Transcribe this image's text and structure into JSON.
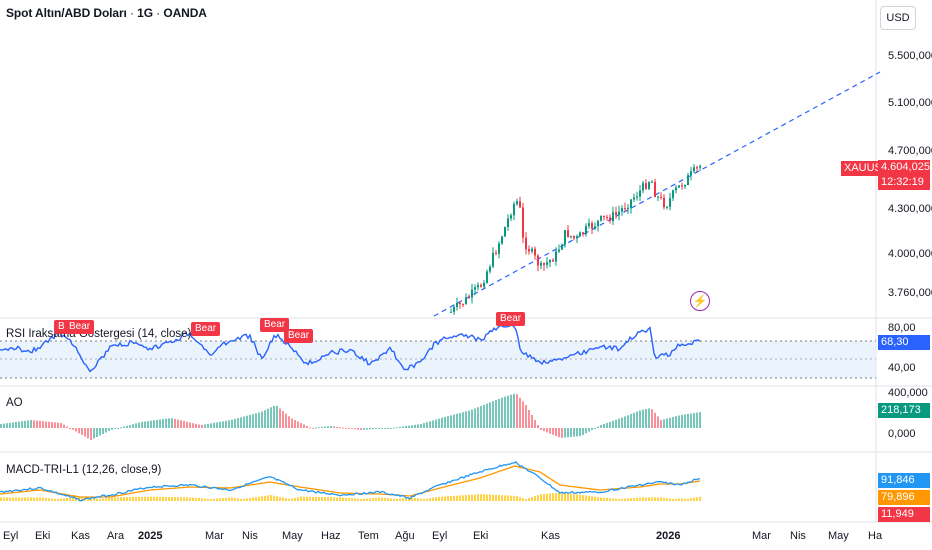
{
  "header": {
    "symbol_name": "Spot Altın/ABD Doları",
    "interval": "1G",
    "exchange": "OANDA",
    "separator": " · ",
    "currency": "USD"
  },
  "main_axis": {
    "ticks": [
      "5.500,000",
      "5.100,000",
      "4.700,000",
      "4.300,000",
      "4.000,000",
      "3.760,000"
    ],
    "symbol_tag": "XAUUSD",
    "last_price": "4.604,025",
    "countdown": "12:32:19"
  },
  "rsi": {
    "title": "RSI Iraksama Göstergesi (14, close)",
    "ticks": [
      "80,00",
      "40,00"
    ],
    "value": "68,30",
    "bear_labels": [
      "Bear",
      "Bear",
      "Bear",
      "Bear",
      "Bear",
      "Bear"
    ]
  },
  "ao": {
    "title": "AO",
    "ticks": [
      "400,000",
      "0,000"
    ],
    "value": "218,173"
  },
  "macd": {
    "title": "MACD-TRI-L1 (12,26, close,9)",
    "values": [
      "91,846",
      "79,896",
      "11,949"
    ]
  },
  "time_axis": {
    "months": [
      "Eyl",
      "Eki",
      "Kas",
      "Ara",
      "2025",
      "Mar",
      "Nis",
      "May",
      "Haz",
      "Tem",
      "Ağu",
      "Eyl",
      "Eki",
      "Kas",
      "2026",
      "Mar",
      "Nis",
      "May",
      "Ha"
    ]
  },
  "colors": {
    "up": "#089981",
    "down": "#f23645",
    "rsi_line": "#2962ff",
    "macd_line": "#2196f3",
    "signal_line": "#ff9800",
    "hist": "#ffc107",
    "trend": "#2962ff",
    "bolt": "#9c27b0"
  }
}
